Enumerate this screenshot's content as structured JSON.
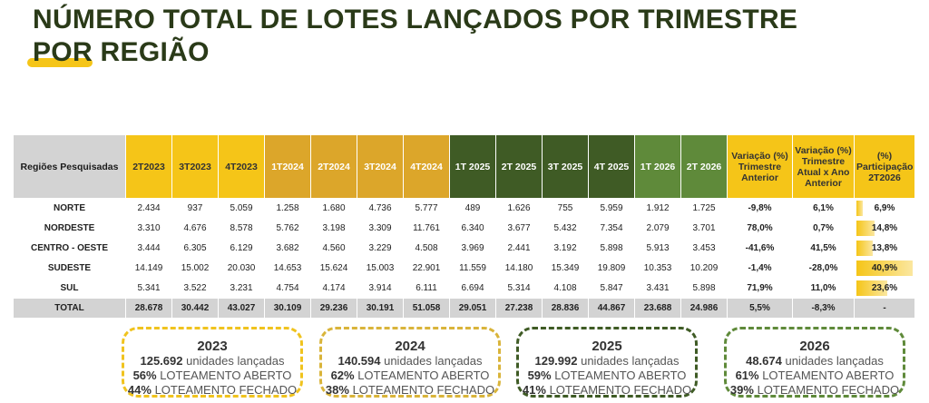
{
  "title": {
    "line1": "NÚMERO TOTAL DE LOTES LANÇADOS POR TRIMESTRE",
    "line2_por": "POR",
    "line2_rest": " REGIÃO",
    "underline_color": "#f5c518"
  },
  "table": {
    "header": {
      "region": "Regiões Pesquisadas",
      "periods": [
        "2T2023",
        "3T2023",
        "4T2023",
        "1T2024",
        "2T2024",
        "3T2024",
        "4T2024",
        "1T 2025",
        "2T 2025",
        "3T 2025",
        "4T 2025",
        "1T 2026",
        "2T 2026"
      ],
      "var_prev": "Variação (%) Trimestre Anterior",
      "var_year": "Variação (%) Trimestre Atual x Ano Anterior",
      "share": "(%) Participação 2T2026"
    },
    "rows": [
      {
        "region": "NORTE",
        "values": [
          "2.434",
          "937",
          "5.059",
          "1.258",
          "1.680",
          "4.736",
          "5.777",
          "489",
          "1.626",
          "755",
          "5.959",
          "1.912",
          "1.725"
        ],
        "var_prev": "-9,8%",
        "var_year": "6,1%",
        "share": "6,9%",
        "share_value": 6.9
      },
      {
        "region": "NORDESTE",
        "values": [
          "3.310",
          "4.676",
          "8.578",
          "5.762",
          "3.198",
          "3.309",
          "11.761",
          "6.340",
          "3.677",
          "5.432",
          "7.354",
          "2.079",
          "3.701"
        ],
        "var_prev": "78,0%",
        "var_year": "0,7%",
        "share": "14,8%",
        "share_value": 14.8
      },
      {
        "region": "CENTRO - OESTE",
        "values": [
          "3.444",
          "6.305",
          "6.129",
          "3.682",
          "4.560",
          "3.229",
          "4.508",
          "3.969",
          "2.441",
          "3.192",
          "5.898",
          "5.913",
          "3.453"
        ],
        "var_prev": "-41,6%",
        "var_year": "41,5%",
        "share": "13,8%",
        "share_value": 13.8
      },
      {
        "region": "SUDESTE",
        "values": [
          "14.149",
          "15.002",
          "20.030",
          "14.653",
          "15.624",
          "15.003",
          "22.901",
          "11.559",
          "14.180",
          "15.349",
          "19.809",
          "10.353",
          "10.209"
        ],
        "var_prev": "-1,4%",
        "var_year": "-28,0%",
        "share": "40,9%",
        "share_value": 40.9
      },
      {
        "region": "SUL",
        "values": [
          "5.341",
          "3.522",
          "3.231",
          "4.754",
          "4.174",
          "3.914",
          "6.111",
          "6.694",
          "5.314",
          "4.108",
          "5.847",
          "3.431",
          "5.898"
        ],
        "var_prev": "71,9%",
        "var_year": "11,0%",
        "share": "23,6%",
        "share_value": 23.6
      }
    ],
    "total": {
      "region": "TOTAL",
      "values": [
        "28.678",
        "30.442",
        "43.027",
        "30.109",
        "29.236",
        "30.191",
        "51.058",
        "29.051",
        "27.238",
        "28.836",
        "44.867",
        "23.688",
        "24.986"
      ],
      "var_prev": "5,5%",
      "var_year": "-8,3%",
      "share": "-"
    }
  },
  "cards": [
    {
      "year": "2023",
      "units_num": "125.692",
      "units_txt": " unidades lançadas",
      "open_pct": "56%",
      "open_txt": " LOTEAMENTO ABERTO",
      "closed_pct": "44%",
      "closed_txt": " LOTEAMENTO FECHADO"
    },
    {
      "year": "2024",
      "units_num": "140.594",
      "units_txt": " unidades lançadas",
      "open_pct": "62%",
      "open_txt": " LOTEAMENTO ABERTO",
      "closed_pct": "38%",
      "closed_txt": " LOTEAMENTO FECHADO"
    },
    {
      "year": "2025",
      "units_num": "129.992",
      "units_txt": " unidades lançadas",
      "open_pct": "59%",
      "open_txt": " LOTEAMENTO ABERTO",
      "closed_pct": "41%",
      "closed_txt": " LOTEAMENTO FECHADO"
    },
    {
      "year": "2026",
      "units_num": "48.674",
      "units_txt": " unidades lançadas",
      "open_pct": "61%",
      "open_txt": " LOTEAMENTO ABERTO",
      "closed_pct": "39%",
      "closed_txt": " LOTEAMENTO FECHADO"
    }
  ]
}
